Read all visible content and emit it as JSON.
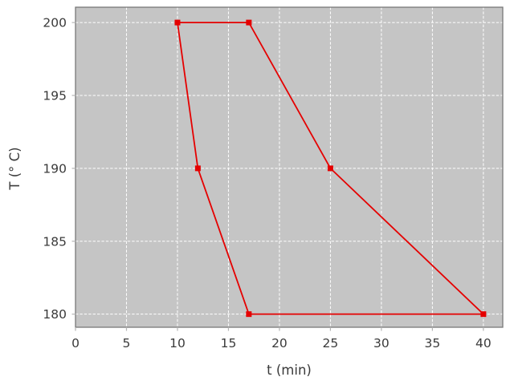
{
  "figure": {
    "background": "#ffffff"
  },
  "chart_data": {
    "type": "line",
    "title": "",
    "xlabel": "t (min)",
    "ylabel": "T (° C)",
    "xlim": [
      0,
      41.9
    ],
    "ylim": [
      179.1,
      201.05
    ],
    "xticks": [
      0,
      5,
      10,
      15,
      20,
      25,
      30,
      35,
      40
    ],
    "yticks": [
      180,
      185,
      190,
      195,
      200
    ],
    "grid": true,
    "grid_color": "#ffffff",
    "plot_background": "#c5c5c5",
    "spine_color": "#787878",
    "tick_mark_color": "#b4b4b4",
    "label_color": "#3a3a3a",
    "series": [
      {
        "color": "#e50000",
        "marker": "square",
        "line_width": 1.8,
        "marker_size": 7,
        "points": [
          {
            "x": 10,
            "y": 200
          },
          {
            "x": 17,
            "y": 200
          },
          {
            "x": 25,
            "y": 190
          },
          {
            "x": 40,
            "y": 180
          },
          {
            "x": 17,
            "y": 180
          },
          {
            "x": 12,
            "y": 190
          },
          {
            "x": 10,
            "y": 200
          }
        ]
      }
    ]
  }
}
